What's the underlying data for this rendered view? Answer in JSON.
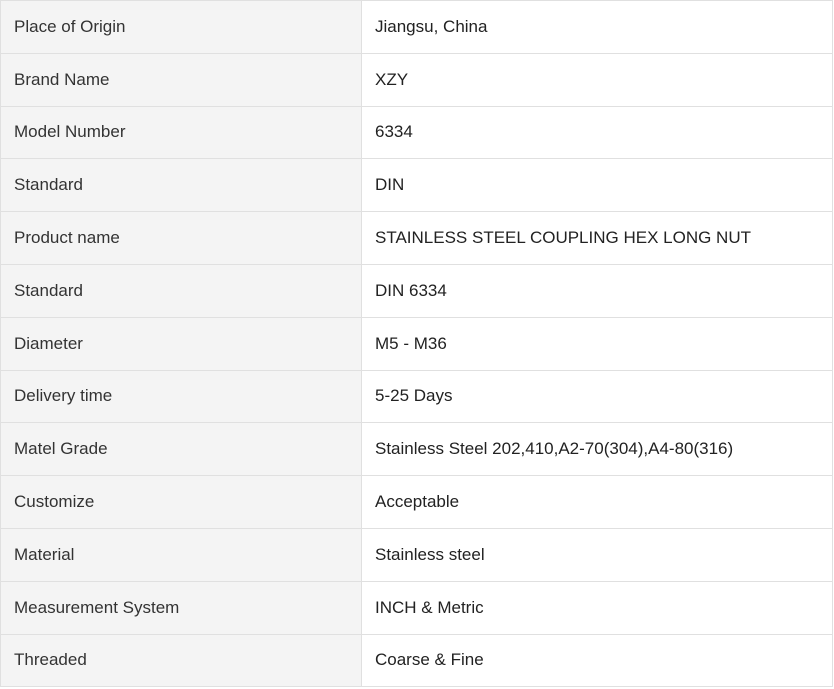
{
  "rows": [
    {
      "label": "Place of Origin",
      "value": "Jiangsu, China"
    },
    {
      "label": "Brand Name",
      "value": "XZY"
    },
    {
      "label": "Model Number",
      "value": "6334"
    },
    {
      "label": "Standard",
      "value": "DIN"
    },
    {
      "label": "Product name",
      "value": "STAINLESS STEEL COUPLING HEX LONG NUT"
    },
    {
      "label": "Standard",
      "value": "DIN 6334"
    },
    {
      "label": "Diameter",
      "value": "M5 - M36"
    },
    {
      "label": "Delivery time",
      "value": "5-25 Days"
    },
    {
      "label": "Matel Grade",
      "value": "Stainless Steel 202,410,A2-70(304),A4-80(316)"
    },
    {
      "label": "Customize",
      "value": "Acceptable"
    },
    {
      "label": "Material",
      "value": "Stainless steel"
    },
    {
      "label": "Measurement System",
      "value": "INCH & Metric"
    },
    {
      "label": "Threaded",
      "value": "Coarse & Fine"
    }
  ]
}
